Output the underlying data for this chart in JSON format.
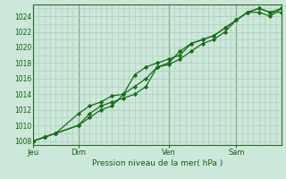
{
  "bg_color": "#cbe8d8",
  "grid_color": "#a8ccbb",
  "line_color": "#1a6b1a",
  "marker_color": "#1a6b1a",
  "xlabel": "Pression niveau de la mer( hPa )",
  "ylim": [
    1007.5,
    1025.5
  ],
  "yticks": [
    1008,
    1010,
    1012,
    1014,
    1016,
    1018,
    1020,
    1022,
    1024
  ],
  "day_labels": [
    "Jeu",
    "Dim",
    "Ven",
    "Sam"
  ],
  "day_positions": [
    0,
    48,
    144,
    216
  ],
  "total_hours": 264,
  "series1_x": [
    0,
    12,
    24,
    48,
    60,
    72,
    84,
    96,
    108,
    120,
    132,
    144,
    156,
    168,
    180,
    192,
    204,
    216,
    228,
    240,
    252,
    264
  ],
  "series1_y": [
    1008,
    1008.5,
    1009,
    1010,
    1011.5,
    1012.5,
    1013,
    1013.5,
    1014,
    1015,
    1017.5,
    1017.8,
    1018.5,
    1019.5,
    1020.5,
    1021,
    1022,
    1023.5,
    1024.5,
    1024.5,
    1024,
    1025
  ],
  "series2_x": [
    0,
    12,
    24,
    48,
    60,
    72,
    84,
    96,
    108,
    120,
    132,
    144,
    156,
    168,
    180,
    192,
    204,
    216,
    228,
    240,
    252,
    264
  ],
  "series2_y": [
    1008,
    1008.5,
    1009,
    1011.5,
    1012.5,
    1013,
    1013.8,
    1014,
    1016.5,
    1017.5,
    1018,
    1018.5,
    1019,
    1020.5,
    1021,
    1021.5,
    1022.5,
    1023.5,
    1024.5,
    1025,
    1024.5,
    1025
  ],
  "series3_x": [
    0,
    12,
    24,
    48,
    60,
    72,
    84,
    96,
    108,
    120,
    132,
    144,
    156,
    168,
    180,
    192,
    204,
    216,
    228,
    240,
    252,
    264
  ],
  "series3_y": [
    1008,
    1008.5,
    1009,
    1010,
    1011,
    1012,
    1012.5,
    1014,
    1015,
    1016,
    1017.5,
    1018,
    1019.5,
    1020.5,
    1021,
    1021.5,
    1022.5,
    1023.5,
    1024.5,
    1025,
    1024.5,
    1024.5
  ]
}
